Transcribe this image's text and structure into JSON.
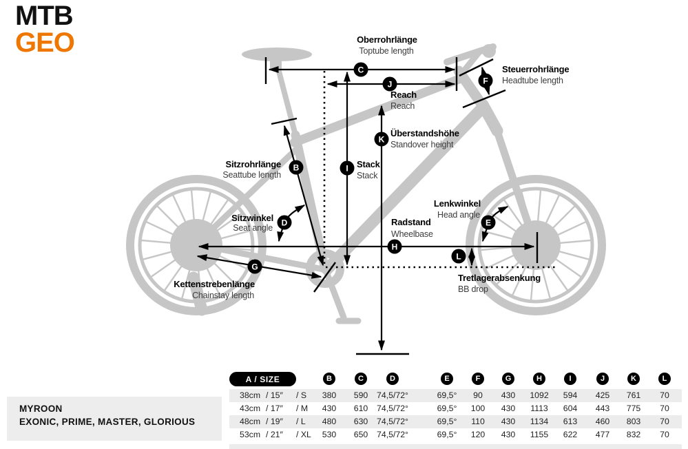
{
  "logo": {
    "line1": "MTB",
    "line2": "GEO"
  },
  "colors": {
    "accent_orange": "#ee7601",
    "bike_gray": "#c6c6c6",
    "ink": "#000000",
    "row_stripe": "#ececec"
  },
  "diagram": {
    "labels": [
      {
        "id": "toptube",
        "letter": "C",
        "de": "Oberrohrlänge",
        "en": "Toptube length"
      },
      {
        "id": "reach",
        "letter": "J",
        "de": "Reach",
        "en": "Reach"
      },
      {
        "id": "headtube",
        "letter": "F",
        "de": "Steuerrohrlänge",
        "en": "Headtube length"
      },
      {
        "id": "standover",
        "letter": "K",
        "de": "Überstandshöhe",
        "en": "Standover height"
      },
      {
        "id": "stack",
        "letter": "I",
        "de": "Stack",
        "en": "Stack"
      },
      {
        "id": "seattube",
        "letter": "B",
        "de": "Sitzrohrlänge",
        "en": "Seattube length"
      },
      {
        "id": "seat-angle",
        "letter": "D",
        "de": "Sitzwinkel",
        "en": "Seat angle"
      },
      {
        "id": "head-angle",
        "letter": "E",
        "de": "Lenkwinkel",
        "en": "Head angle"
      },
      {
        "id": "wheelbase",
        "letter": "H",
        "de": "Radstand",
        "en": "Wheelbase"
      },
      {
        "id": "chainstay",
        "letter": "G",
        "de": "Kettenstrebenlänge",
        "en": "Chainstay length"
      },
      {
        "id": "bb-drop",
        "letter": "L",
        "de": "Tretlagerabsenkung",
        "en": "BB drop"
      }
    ]
  },
  "table": {
    "size_header": "A / SIZE",
    "columns": [
      "B",
      "C",
      "D",
      "E",
      "F",
      "G",
      "H",
      "I",
      "J",
      "K",
      "L"
    ],
    "rows": [
      {
        "size_parts": [
          "38cm",
          "/ 15″",
          "/ S"
        ],
        "values": [
          "380",
          "590",
          "74,5/72°",
          "69,5°",
          "90",
          "430",
          "1092",
          "594",
          "425",
          "761",
          "70"
        ]
      },
      {
        "size_parts": [
          "43cm",
          "/ 17″",
          "/ M"
        ],
        "values": [
          "430",
          "610",
          "74,5/72°",
          "69,5°",
          "100",
          "430",
          "1113",
          "604",
          "443",
          "775",
          "70"
        ]
      },
      {
        "size_parts": [
          "48cm",
          "/ 19″",
          "/ L"
        ],
        "values": [
          "480",
          "630",
          "74,5/72°",
          "69,5°",
          "110",
          "430",
          "1134",
          "613",
          "460",
          "803",
          "70"
        ]
      },
      {
        "size_parts": [
          "53cm",
          "/ 21″",
          "/ XL"
        ],
        "values": [
          "530",
          "650",
          "74,5/72°",
          "69,5°",
          "120",
          "430",
          "1155",
          "622",
          "477",
          "832",
          "70"
        ]
      }
    ]
  },
  "footer": {
    "model": "MYROON",
    "trims": "EXONIC, PRIME, MASTER, GLORIOUS"
  }
}
